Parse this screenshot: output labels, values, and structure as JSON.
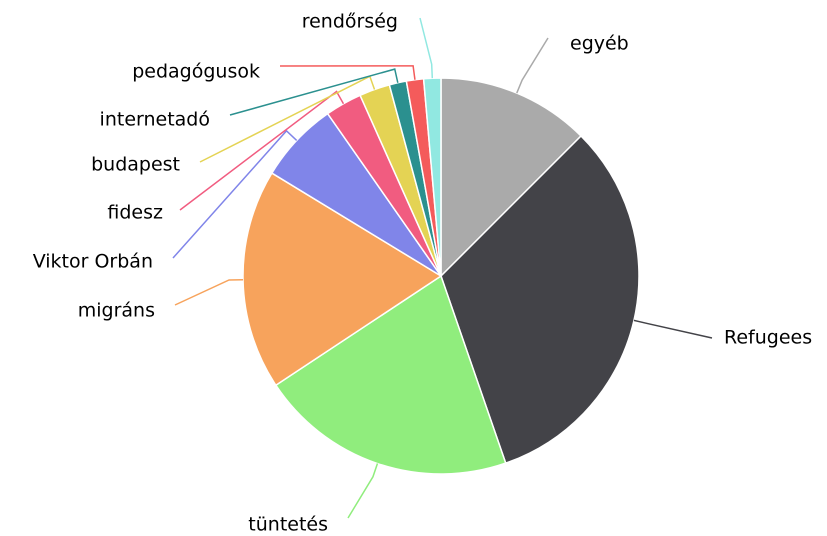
{
  "chart_data": {
    "type": "pie",
    "categories": [
      "egyéb",
      "Refugees",
      "tüntetés",
      "migráns",
      "Viktor Orbán",
      "fidesz",
      "budapest",
      "internetadó",
      "pedagógusok",
      "rendőrség"
    ],
    "values": [
      12.5,
      32.2,
      21,
      18,
      6.6,
      3,
      2.5,
      1.4,
      1.4,
      1.4
    ],
    "colors": [
      "#aaaaaa",
      "#434348",
      "#90ed7d",
      "#f7a35c",
      "#8085e9",
      "#f15c80",
      "#e4d354",
      "#2b908f",
      "#f45b5b",
      "#91e8e1"
    ]
  }
}
